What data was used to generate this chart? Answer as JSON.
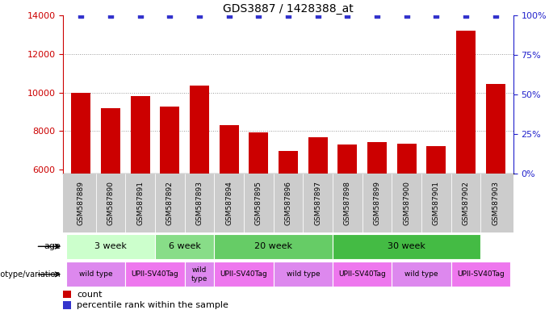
{
  "title": "GDS3887 / 1428388_at",
  "samples": [
    "GSM587889",
    "GSM587890",
    "GSM587891",
    "GSM587892",
    "GSM587893",
    "GSM587894",
    "GSM587895",
    "GSM587896",
    "GSM587897",
    "GSM587898",
    "GSM587899",
    "GSM587900",
    "GSM587901",
    "GSM587902",
    "GSM587903"
  ],
  "counts": [
    9980,
    9210,
    9810,
    9290,
    10360,
    8330,
    7950,
    6980,
    7700,
    7310,
    7450,
    7360,
    7230,
    13200,
    10430
  ],
  "percentile_ranks": [
    100,
    100,
    100,
    100,
    100,
    100,
    100,
    100,
    100,
    100,
    100,
    100,
    100,
    100,
    100
  ],
  "ylim_left": [
    5800,
    14000
  ],
  "ylim_right": [
    0,
    100
  ],
  "yticks_left": [
    6000,
    8000,
    10000,
    12000,
    14000
  ],
  "yticks_right": [
    0,
    25,
    50,
    75,
    100
  ],
  "bar_color": "#cc0000",
  "dot_color": "#3333cc",
  "age_groups": [
    {
      "label": "3 week",
      "start": 0,
      "end": 3,
      "color": "#ccffcc"
    },
    {
      "label": "6 week",
      "start": 3,
      "end": 5,
      "color": "#88dd88"
    },
    {
      "label": "20 week",
      "start": 5,
      "end": 9,
      "color": "#66cc66"
    },
    {
      "label": "30 week",
      "start": 9,
      "end": 14,
      "color": "#44bb44"
    }
  ],
  "genotype_groups": [
    {
      "label": "wild type",
      "start": 0,
      "end": 2,
      "color": "#dd88ee"
    },
    {
      "label": "UPII-SV40Tag",
      "start": 2,
      "end": 4,
      "color": "#ee77ee"
    },
    {
      "label": "wild\ntype",
      "start": 4,
      "end": 5,
      "color": "#dd88ee"
    },
    {
      "label": "UPII-SV40Tag",
      "start": 5,
      "end": 7,
      "color": "#ee77ee"
    },
    {
      "label": "wild type",
      "start": 7,
      "end": 9,
      "color": "#dd88ee"
    },
    {
      "label": "UPII-SV40Tag",
      "start": 9,
      "end": 11,
      "color": "#ee77ee"
    },
    {
      "label": "wild type",
      "start": 11,
      "end": 13,
      "color": "#dd88ee"
    },
    {
      "label": "UPII-SV40Tag",
      "start": 13,
      "end": 15,
      "color": "#ee77ee"
    }
  ],
  "background_color": "#ffffff",
  "tick_color_left": "#cc0000",
  "tick_color_right": "#2222cc",
  "grid_color": "#999999",
  "title_fontsize": 10,
  "bar_width": 0.65,
  "sample_bg": "#cccccc",
  "xlim": [
    -0.6,
    14.6
  ]
}
